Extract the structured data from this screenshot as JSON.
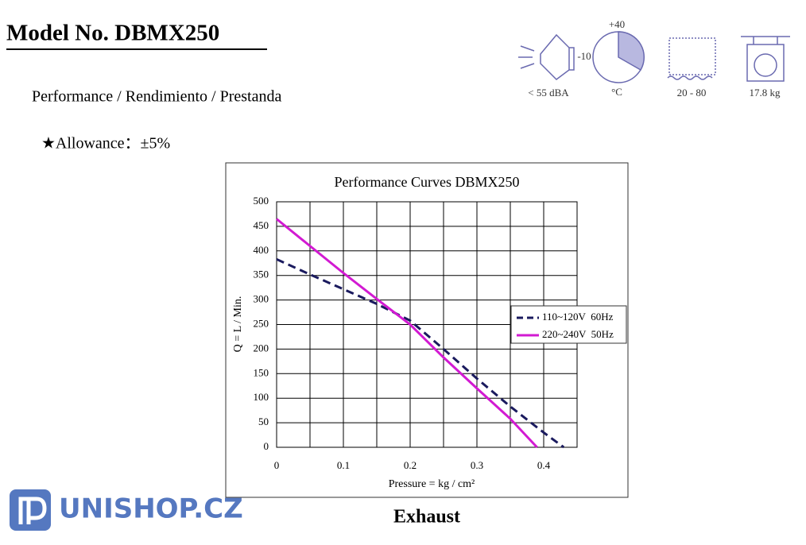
{
  "header": {
    "title": "Model No. DBMX250",
    "subtitle": "Performance / Rendimiento / Prestanda",
    "allowance": "★Allowance：±5%"
  },
  "icons": {
    "noise": "< 55 dBA",
    "temp_unit": "°C",
    "temp_max": "+40",
    "temp_min": "-10",
    "humidity": "20 - 80",
    "weight": "17.8 kg"
  },
  "chart_data": {
    "type": "line",
    "title": "Performance  Curves  DBMX250",
    "x_label": "Pressure = kg / cm²",
    "y_label": "Q = L / Min.",
    "xlim": [
      0,
      0.45
    ],
    "ylim": [
      0,
      500
    ],
    "xticks": [
      0,
      {
        "value": 0.05,
        "label": null
      },
      0.1,
      {
        "value": 0.15,
        "label": null
      },
      0.2,
      {
        "value": 0.25,
        "label": null
      },
      0.3,
      {
        "value": 0.35,
        "label": null
      },
      0.4,
      {
        "value": 0.45,
        "label": null
      }
    ],
    "yticks": [
      0,
      50,
      100,
      150,
      200,
      250,
      300,
      350,
      400,
      450,
      500
    ],
    "grid": true,
    "series": [
      {
        "name": "110~120V  60Hz",
        "color": "#1a1a5e",
        "dash": true,
        "x": [
          0,
          0.05,
          0.1,
          0.15,
          0.2,
          0.25,
          0.3,
          0.35,
          0.4,
          0.43
        ],
        "values": [
          383,
          352,
          322,
          292,
          258,
          200,
          140,
          83,
          30,
          0
        ]
      },
      {
        "name": "220~240V  50Hz",
        "color": "#d21ad2",
        "dash": false,
        "x": [
          0,
          0.05,
          0.1,
          0.15,
          0.2,
          0.25,
          0.3,
          0.35,
          0.39
        ],
        "values": [
          465,
          410,
          355,
          302,
          250,
          183,
          120,
          58,
          0
        ]
      }
    ]
  },
  "footer": {
    "caption": "Exhaust",
    "logo": "UNISHOP.CZ"
  }
}
